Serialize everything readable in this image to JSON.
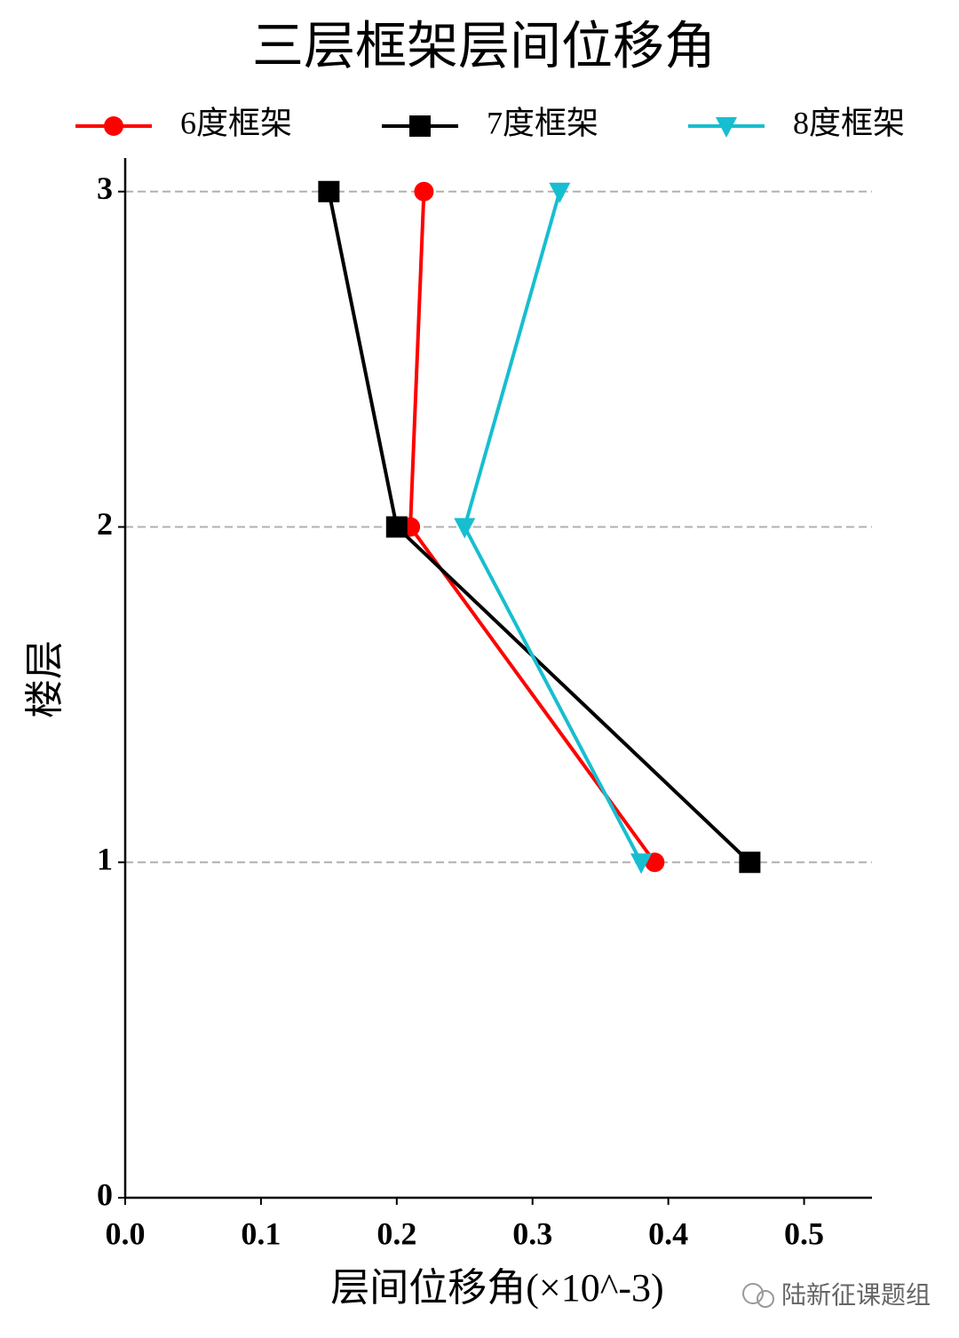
{
  "chart_data": {
    "type": "line",
    "title": "三层框架层间位移角",
    "x_label": "层间位移角(×10^-3)",
    "y_label": "楼层",
    "y": [
      1,
      2,
      3
    ],
    "series": [
      {
        "name": "6度框架",
        "color": "#ff0000",
        "marker": "circle",
        "values": [
          0.39,
          0.21,
          0.22
        ]
      },
      {
        "name": "7度框架",
        "color": "#000000",
        "marker": "square",
        "values": [
          0.46,
          0.2,
          0.15
        ]
      },
      {
        "name": "8度框架",
        "color": "#17becf",
        "marker": "triangle-down",
        "values": [
          0.38,
          0.25,
          0.32
        ]
      }
    ],
    "xlim": [
      0,
      0.55
    ],
    "xticks": [
      {
        "value": 0,
        "label": "0.0"
      },
      0.1,
      0.2,
      0.3,
      0.4,
      0.5
    ],
    "ylim": [
      0,
      3.1
    ],
    "yticks": [
      0,
      1,
      2,
      3
    ],
    "grid": true,
    "legend": "top",
    "watermark": "陆新征课题组"
  }
}
